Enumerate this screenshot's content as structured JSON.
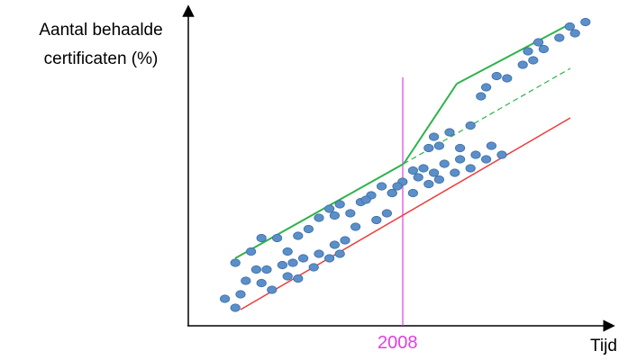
{
  "chart_data": {
    "type": "scatter",
    "ylabel_lines": [
      "Aantal behaalde",
      "certificaten (%)"
    ],
    "xlabel": "Tijd",
    "marker_label": "2008",
    "colors": {
      "points": "#5b8fc9",
      "point_outline": "#3d6ea5",
      "upper_trend": "#2db34a",
      "lower_trend": "#ee3b3b",
      "marker": "#e040e0",
      "axis": "#000000"
    },
    "series": [
      {
        "points": [
          [
            4.5,
            14
          ],
          [
            6,
            16.5
          ],
          [
            7,
            19.5
          ],
          [
            8.5,
            19.5
          ],
          [
            9.5,
            16.5
          ],
          [
            10.5,
            20
          ],
          [
            11.5,
            21.5
          ],
          [
            12.5,
            24
          ],
          [
            13.5,
            26
          ],
          [
            14,
            24.5
          ],
          [
            14.5,
            27
          ],
          [
            15.5,
            25
          ],
          [
            16.5,
            27.5
          ],
          [
            17.5,
            29
          ],
          [
            18.5,
            31
          ],
          [
            19.5,
            29.5
          ],
          [
            20.5,
            32
          ],
          [
            21.5,
            34.5
          ],
          [
            22.5,
            35
          ],
          [
            23,
            39.5
          ],
          [
            23.5,
            42
          ],
          [
            24,
            40
          ],
          [
            25,
            43
          ],
          [
            26,
            39.5
          ],
          [
            27,
            44.5
          ],
          [
            28,
            51
          ],
          [
            28.5,
            53
          ],
          [
            29.5,
            55.5
          ],
          [
            30.5,
            55
          ],
          [
            32,
            58
          ],
          [
            32.5,
            61
          ],
          [
            33,
            59
          ],
          [
            33.5,
            63
          ],
          [
            34,
            61.5
          ],
          [
            35.5,
            64
          ],
          [
            36.5,
            66.5
          ],
          [
            37,
            65
          ],
          [
            38,
            67.5
          ]
        ]
      },
      {
        "points": [
          [
            3.5,
            6
          ],
          [
            4.5,
            4
          ],
          [
            5,
            7
          ],
          [
            5.5,
            10
          ],
          [
            6.5,
            12.5
          ],
          [
            7,
            9.5
          ],
          [
            7.5,
            12.5
          ],
          [
            8,
            8
          ],
          [
            9,
            13.5
          ],
          [
            9.5,
            11
          ],
          [
            10,
            14
          ],
          [
            10.5,
            10.5
          ],
          [
            11,
            15
          ],
          [
            12,
            13
          ],
          [
            12.5,
            16
          ],
          [
            13.5,
            15
          ],
          [
            14,
            18
          ],
          [
            14.5,
            16
          ],
          [
            15,
            19
          ],
          [
            16,
            22
          ],
          [
            17,
            28
          ],
          [
            18,
            23.5
          ],
          [
            19,
            25
          ],
          [
            19.5,
            29.5
          ],
          [
            20,
            31
          ],
          [
            21.5,
            29.5
          ],
          [
            22,
            33
          ],
          [
            23,
            31.5
          ],
          [
            23.5,
            34
          ],
          [
            24,
            32.5
          ],
          [
            24.5,
            36
          ],
          [
            25.5,
            34
          ],
          [
            26,
            37
          ],
          [
            27,
            35
          ],
          [
            27.5,
            38
          ],
          [
            28.5,
            37
          ],
          [
            29,
            40
          ],
          [
            30,
            38
          ]
        ]
      }
    ]
  }
}
